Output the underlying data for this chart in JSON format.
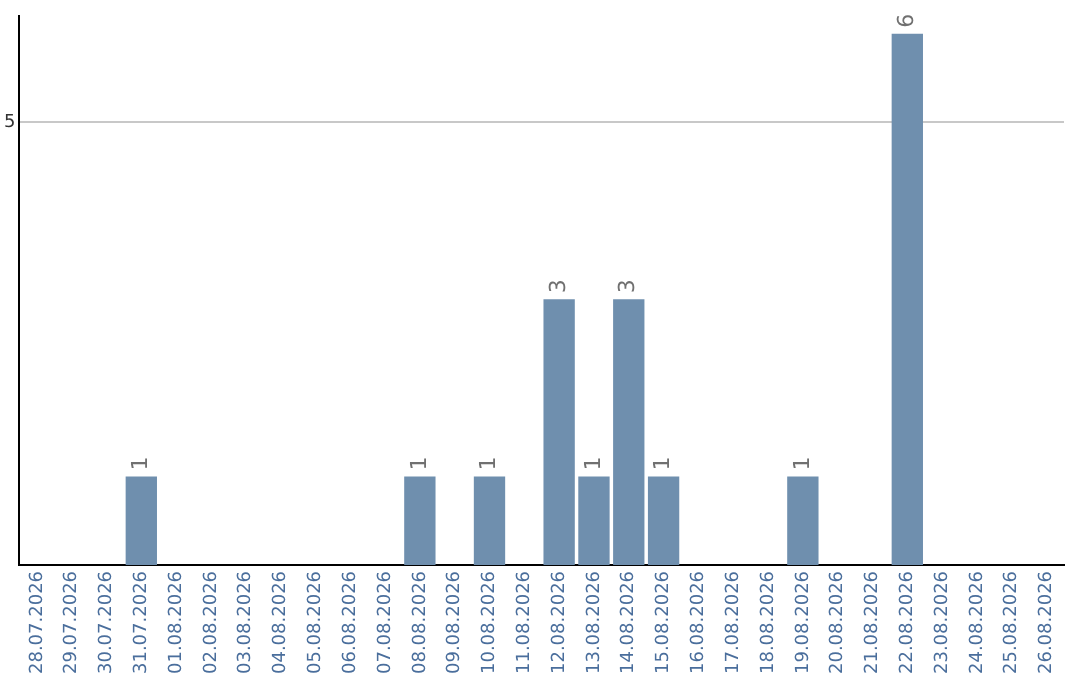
{
  "chart_data": {
    "type": "bar",
    "categories": [
      "28.07.2026",
      "29.07.2026",
      "30.07.2026",
      "31.07.2026",
      "01.08.2026",
      "02.08.2026",
      "03.08.2026",
      "04.08.2026",
      "05.08.2026",
      "06.08.2026",
      "07.08.2026",
      "08.08.2026",
      "09.08.2026",
      "10.08.2026",
      "11.08.2026",
      "12.08.2026",
      "13.08.2026",
      "14.08.2026",
      "15.08.2026",
      "16.08.2026",
      "17.08.2026",
      "18.08.2026",
      "19.08.2026",
      "20.08.2026",
      "21.08.2026",
      "22.08.2026",
      "23.08.2026",
      "24.08.2026",
      "25.08.2026",
      "26.08.2026"
    ],
    "values": [
      0,
      0,
      0,
      1,
      0,
      0,
      0,
      0,
      0,
      0,
      0,
      1,
      0,
      1,
      0,
      3,
      1,
      3,
      1,
      0,
      0,
      0,
      1,
      0,
      0,
      6,
      0,
      0,
      0,
      0
    ],
    "color": "#6f8fae",
    "value_labels": [
      null,
      null,
      null,
      "1",
      null,
      null,
      null,
      null,
      null,
      null,
      null,
      "1",
      null,
      "1",
      null,
      "3",
      "1",
      "3",
      "1",
      null,
      null,
      null,
      "1",
      null,
      null,
      "6",
      null,
      null,
      null,
      null
    ],
    "ylim": [
      0,
      6.2
    ],
    "yticks": [
      5
    ],
    "grid": "y",
    "legend": false
  }
}
